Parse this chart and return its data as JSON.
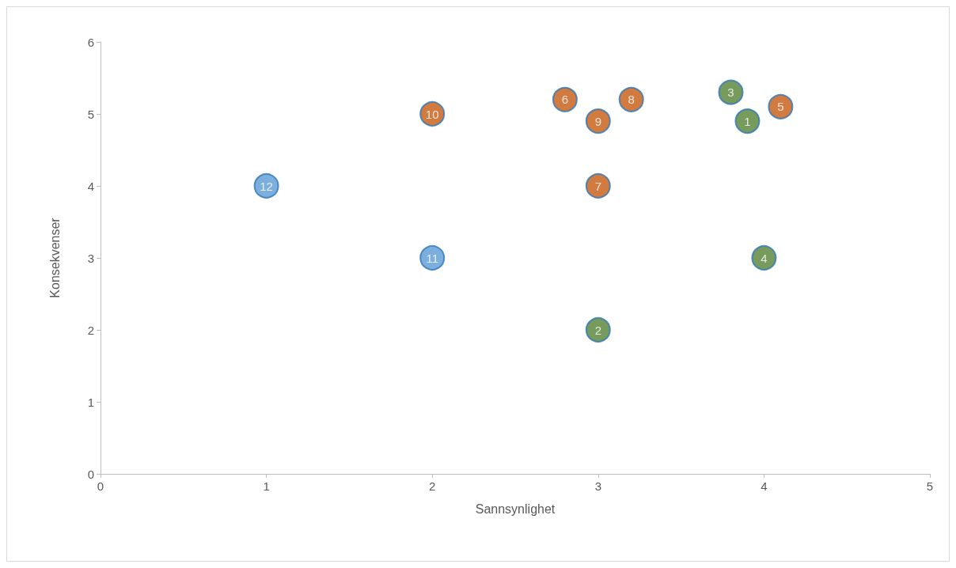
{
  "chart_data": {
    "type": "scatter",
    "xlabel": "Sannsynlighet",
    "ylabel": "Konsekvenser",
    "xlim": [
      0,
      5
    ],
    "xticks": [
      0,
      1,
      2,
      3,
      4,
      5
    ],
    "ylim": [
      0,
      6
    ],
    "yticks": [
      0,
      1,
      2,
      3,
      4,
      5,
      6
    ],
    "grid": false,
    "marker": "circle",
    "series": [
      {
        "color": "#548235",
        "x": [
          3.9,
          3,
          3.8,
          4
        ],
        "values": [
          4.9,
          2,
          5.3,
          3
        ]
      },
      {
        "color": "#c55a11",
        "x": [
          4.1,
          2.8,
          3,
          3.2,
          3,
          2
        ],
        "values": [
          5.1,
          5.2,
          4,
          5.2,
          4.9,
          5
        ]
      },
      {
        "color": "#5b9bd5",
        "x": [
          2,
          1
        ],
        "values": [
          3,
          4
        ]
      }
    ],
    "annotations": [
      {
        "text": "1",
        "x": 3.9,
        "y": 4.9
      },
      {
        "text": "2",
        "x": 3,
        "y": 2
      },
      {
        "text": "3",
        "x": 3.8,
        "y": 5.3
      },
      {
        "text": "4",
        "x": 4,
        "y": 3
      },
      {
        "text": "5",
        "x": 4.1,
        "y": 5.1
      },
      {
        "text": "6",
        "x": 2.8,
        "y": 5.2
      },
      {
        "text": "7",
        "x": 3,
        "y": 4
      },
      {
        "text": "8",
        "x": 3.2,
        "y": 5.2
      },
      {
        "text": "9",
        "x": 3,
        "y": 4.9
      },
      {
        "text": "10",
        "x": 2,
        "y": 5
      },
      {
        "text": "11",
        "x": 2,
        "y": 3
      },
      {
        "text": "12",
        "x": 1,
        "y": 4
      }
    ]
  }
}
